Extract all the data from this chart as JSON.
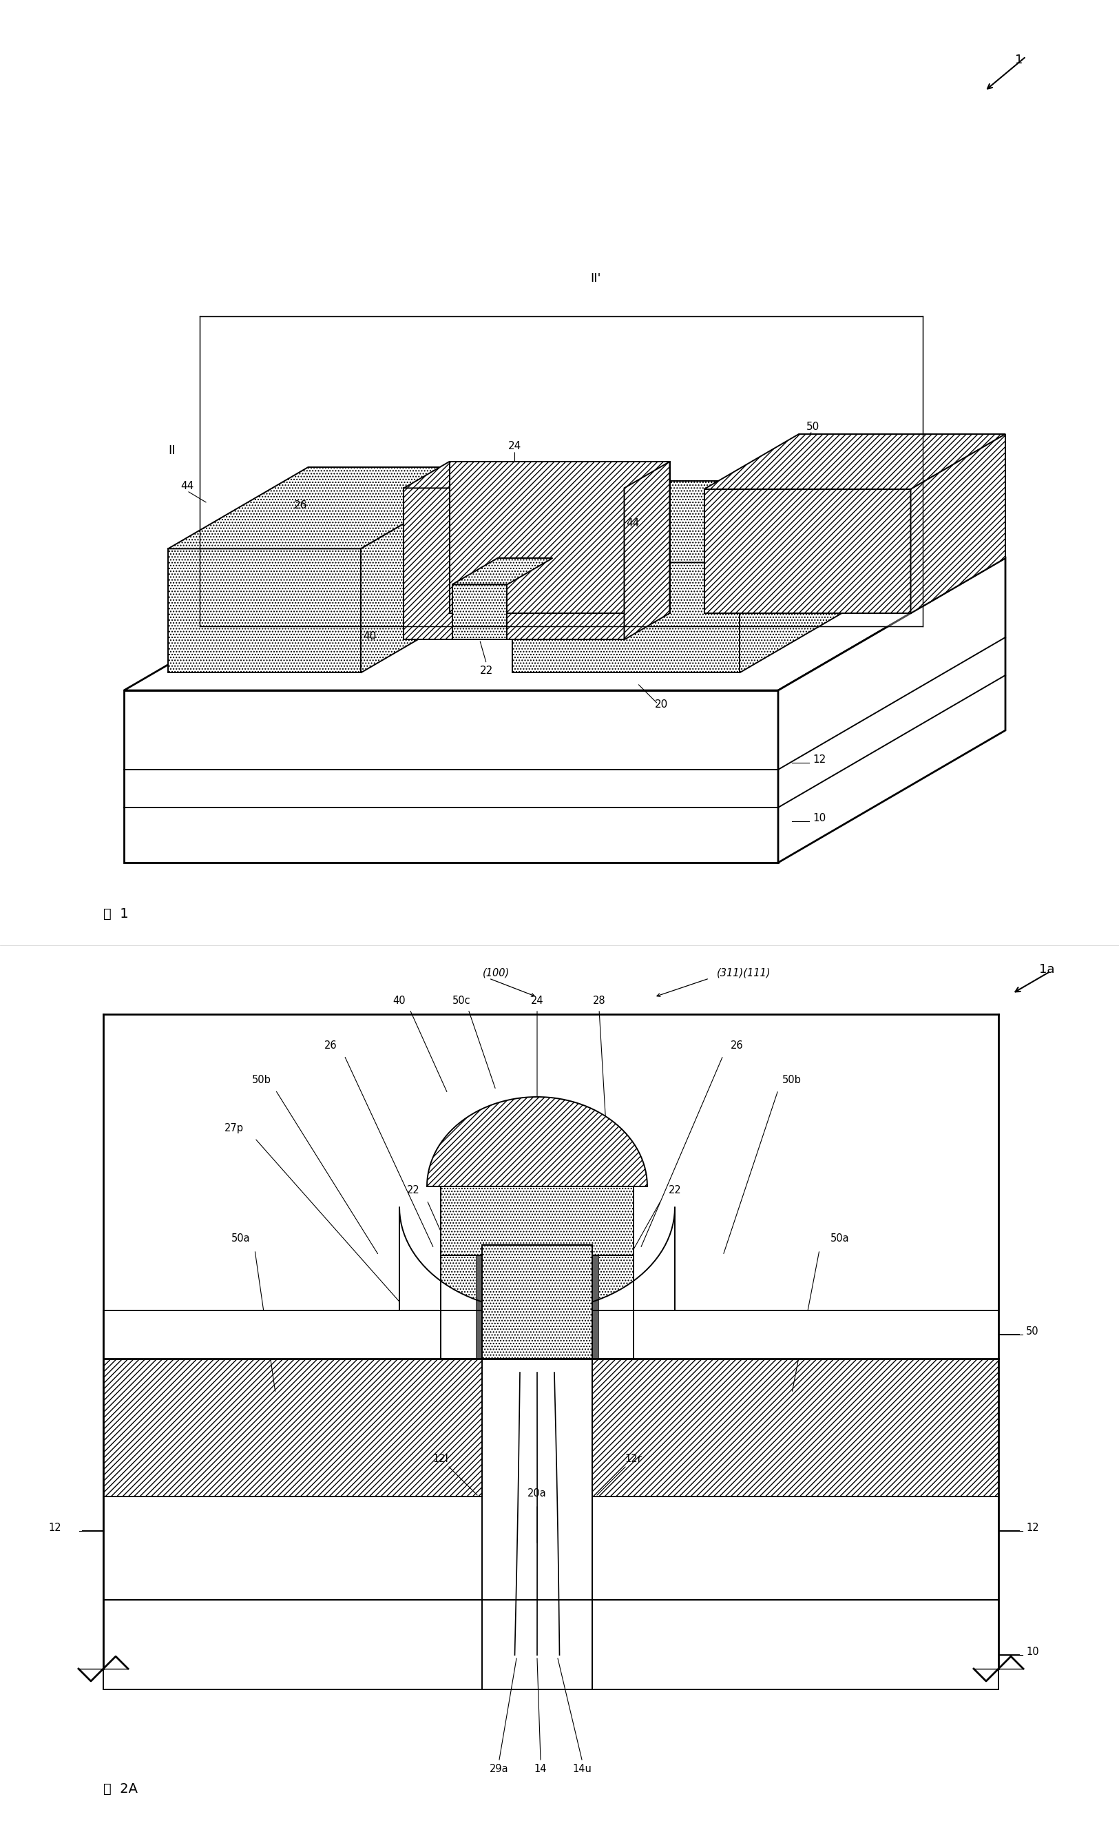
{
  "fig_width": 16.25,
  "fig_height": 26.72,
  "bg_color": "#ffffff",
  "line_color": "#000000",
  "fig1_label": "图  1",
  "fig2_label": "图  2A",
  "ref_1": "1",
  "ref_1a": "1a",
  "ref_10": "10",
  "ref_12": "12",
  "ref_12l": "12l",
  "ref_12r": "12r",
  "ref_14": "14",
  "ref_14u": "14u",
  "ref_20": "20",
  "ref_20a": "20a",
  "ref_22": "22",
  "ref_24": "24",
  "ref_26": "26",
  "ref_27p": "27p",
  "ref_28": "28",
  "ref_29a": "29a",
  "ref_40": "40",
  "ref_44": "44",
  "ref_50": "50",
  "ref_50a": "50a",
  "ref_50b": "50b",
  "ref_50c": "50c",
  "ref_II": "II",
  "ref_IIp": "II'",
  "ref_100": "(100)",
  "ref_311_111": "(311)(111)"
}
